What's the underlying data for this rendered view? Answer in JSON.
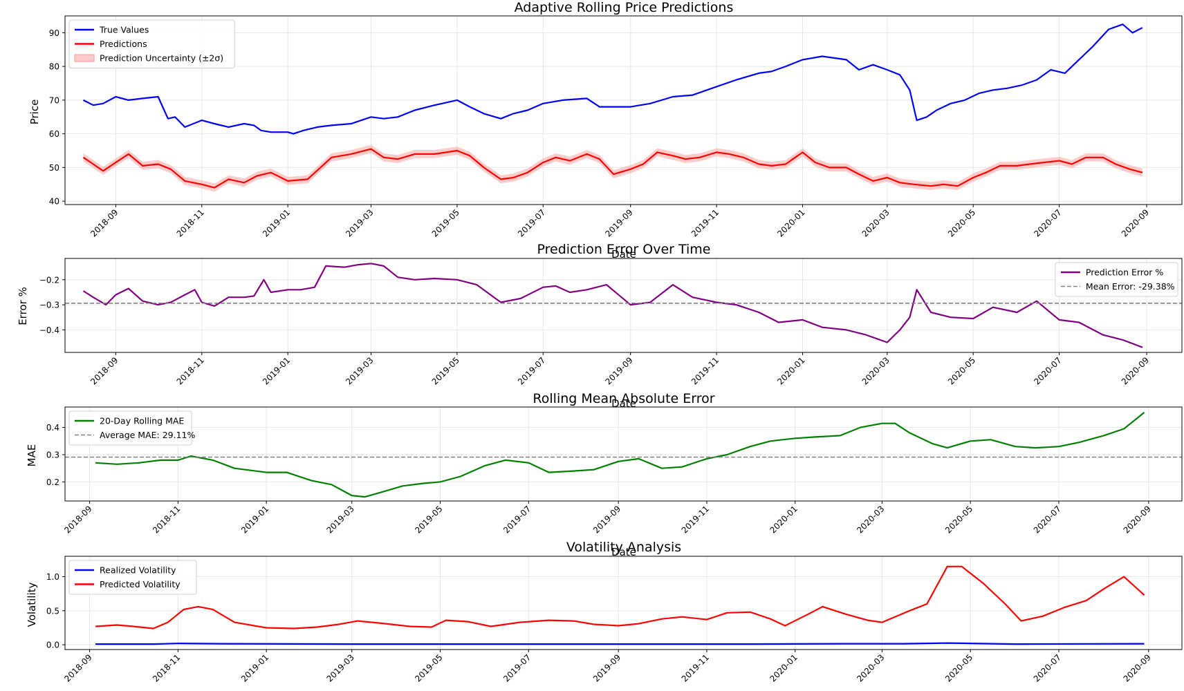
{
  "chart_data": [
    {
      "type": "line",
      "title": "Adaptive Rolling Price Predictions",
      "xlabel": "Date",
      "ylabel": "Price",
      "xlim": [
        "2018-07-27",
        "2020-09-26"
      ],
      "ylim": [
        39,
        95
      ],
      "yticks": [
        40,
        50,
        60,
        70,
        80,
        90
      ],
      "xticks": [
        "2018-09",
        "2018-11",
        "2019-01",
        "2019-03",
        "2019-05",
        "2019-07",
        "2019-09",
        "2019-11",
        "2020-01",
        "2020-03",
        "2020-05",
        "2020-07",
        "2020-09"
      ],
      "grid": true,
      "legend_position": "upper-left",
      "series": [
        {
          "name": "True Values",
          "color": "#0000ff",
          "x": [
            "2018-08-09",
            "2018-08-16",
            "2018-08-23",
            "2018-09-01",
            "2018-09-10",
            "2018-09-20",
            "2018-10-01",
            "2018-10-08",
            "2018-10-13",
            "2018-10-20",
            "2018-11-01",
            "2018-11-10",
            "2018-11-20",
            "2018-12-01",
            "2018-12-08",
            "2018-12-13",
            "2018-12-20",
            "2019-01-01",
            "2019-01-05",
            "2019-01-12",
            "2019-01-22",
            "2019-02-01",
            "2019-02-15",
            "2019-03-01",
            "2019-03-10",
            "2019-03-20",
            "2019-04-01",
            "2019-04-15",
            "2019-05-01",
            "2019-05-10",
            "2019-05-20",
            "2019-06-01",
            "2019-06-10",
            "2019-06-20",
            "2019-07-01",
            "2019-07-15",
            "2019-08-01",
            "2019-08-10",
            "2019-08-20",
            "2019-09-01",
            "2019-09-15",
            "2019-10-01",
            "2019-10-15",
            "2019-11-01",
            "2019-11-08",
            "2019-11-15",
            "2019-12-01",
            "2019-12-10",
            "2019-12-20",
            "2020-01-01",
            "2020-01-15",
            "2020-02-01",
            "2020-02-10",
            "2020-02-20",
            "2020-03-01",
            "2020-03-10",
            "2020-03-17",
            "2020-03-22",
            "2020-03-29",
            "2020-04-05",
            "2020-04-15",
            "2020-04-25",
            "2020-05-05",
            "2020-05-15",
            "2020-05-25",
            "2020-06-05",
            "2020-06-15",
            "2020-06-25",
            "2020-07-05",
            "2020-07-15",
            "2020-07-25",
            "2020-08-05",
            "2020-08-15",
            "2020-08-22",
            "2020-08-29"
          ],
          "y": [
            70,
            68.5,
            69,
            71,
            70,
            70.5,
            71,
            64.5,
            65,
            62,
            64,
            63,
            62,
            63,
            62.5,
            61,
            60.5,
            60.5,
            60,
            61,
            62,
            62.5,
            63,
            65,
            64.5,
            65,
            67,
            68.5,
            70,
            68,
            66,
            64.5,
            66,
            67,
            69,
            70,
            70.5,
            68,
            68,
            68,
            69,
            71,
            71.5,
            74,
            75,
            76,
            78,
            78.5,
            80,
            82,
            83,
            82,
            79,
            80.5,
            79,
            77.5,
            73,
            64,
            65,
            67,
            69,
            70,
            72,
            73,
            73.5,
            74.5,
            76,
            79,
            78,
            82,
            86,
            91,
            92.5,
            90,
            91.5
          ]
        },
        {
          "name": "Predictions",
          "color": "#ff0000",
          "x": [
            "2018-08-09",
            "2018-08-16",
            "2018-08-23",
            "2018-09-01",
            "2018-09-10",
            "2018-09-20",
            "2018-10-01",
            "2018-10-10",
            "2018-10-20",
            "2018-11-01",
            "2018-11-10",
            "2018-11-20",
            "2018-12-01",
            "2018-12-10",
            "2018-12-20",
            "2019-01-01",
            "2019-01-15",
            "2019-02-01",
            "2019-02-15",
            "2019-03-01",
            "2019-03-10",
            "2019-03-20",
            "2019-04-01",
            "2019-04-15",
            "2019-05-01",
            "2019-05-10",
            "2019-05-20",
            "2019-06-01",
            "2019-06-10",
            "2019-06-20",
            "2019-07-01",
            "2019-07-10",
            "2019-07-20",
            "2019-08-01",
            "2019-08-10",
            "2019-08-20",
            "2019-09-01",
            "2019-09-10",
            "2019-09-20",
            "2019-10-01",
            "2019-10-10",
            "2019-10-20",
            "2019-11-01",
            "2019-11-10",
            "2019-11-20",
            "2019-12-01",
            "2019-12-10",
            "2019-12-20",
            "2020-01-01",
            "2020-01-10",
            "2020-01-20",
            "2020-02-01",
            "2020-02-10",
            "2020-02-20",
            "2020-03-01",
            "2020-03-10",
            "2020-03-20",
            "2020-04-01",
            "2020-04-10",
            "2020-04-20",
            "2020-05-01",
            "2020-05-10",
            "2020-05-20",
            "2020-06-01",
            "2020-06-10",
            "2020-06-20",
            "2020-07-01",
            "2020-07-10",
            "2020-07-20",
            "2020-08-01",
            "2020-08-10",
            "2020-08-20",
            "2020-08-29"
          ],
          "y": [
            53,
            51,
            49,
            51.5,
            54,
            50.5,
            51,
            49.5,
            46,
            45,
            44,
            46.5,
            45.5,
            47.5,
            48.5,
            46,
            46.5,
            53,
            54,
            55.5,
            53,
            52.5,
            54,
            54,
            55,
            53.5,
            50,
            46.5,
            47,
            48.5,
            51.5,
            53,
            52,
            54,
            52.5,
            48,
            49.5,
            51,
            54.5,
            53.5,
            52.5,
            53,
            54.5,
            54,
            53,
            51,
            50.5,
            51,
            54.5,
            51.5,
            50,
            50,
            48,
            46,
            47,
            45.5,
            45,
            44.5,
            45,
            44.5,
            47,
            48.5,
            50.5,
            50.5,
            51,
            51.5,
            52,
            51,
            53,
            53,
            51,
            49.5,
            48.5
          ]
        },
        {
          "name": "Prediction Uncertainty (±2σ)",
          "color": "#ff9999",
          "band": "±2σ around Predictions"
        }
      ]
    },
    {
      "type": "line",
      "title": "Prediction Error Over Time",
      "xlabel": "Date",
      "ylabel": "Error %",
      "xlim": [
        "2018-07-27",
        "2020-09-26"
      ],
      "ylim": [
        -0.49,
        -0.115
      ],
      "yticks": [
        -0.4,
        -0.3,
        -0.2
      ],
      "yticklabels": [
        "−0.4",
        "−0.3",
        "−0.2"
      ],
      "xticks": [
        "2018-09",
        "2018-11",
        "2019-01",
        "2019-03",
        "2019-05",
        "2019-07",
        "2019-09",
        "2019-11",
        "2020-01",
        "2020-03",
        "2020-05",
        "2020-07",
        "2020-09"
      ],
      "grid": true,
      "legend_position": "upper-right",
      "series": [
        {
          "name": "Prediction Error %",
          "color": "#800080",
          "x": [
            "2018-08-09",
            "2018-08-16",
            "2018-08-25",
            "2018-09-01",
            "2018-09-10",
            "2018-09-20",
            "2018-10-01",
            "2018-10-10",
            "2018-10-20",
            "2018-10-27",
            "2018-11-01",
            "2018-11-10",
            "2018-11-20",
            "2018-12-01",
            "2018-12-08",
            "2018-12-15",
            "2018-12-20",
            "2019-01-01",
            "2019-01-10",
            "2019-01-20",
            "2019-01-28",
            "2019-02-10",
            "2019-02-20",
            "2019-03-01",
            "2019-03-10",
            "2019-03-20",
            "2019-04-01",
            "2019-04-15",
            "2019-05-01",
            "2019-05-15",
            "2019-06-01",
            "2019-06-15",
            "2019-07-01",
            "2019-07-10",
            "2019-07-20",
            "2019-08-01",
            "2019-08-15",
            "2019-09-01",
            "2019-09-15",
            "2019-10-01",
            "2019-10-15",
            "2019-11-01",
            "2019-11-15",
            "2019-12-01",
            "2019-12-15",
            "2020-01-01",
            "2020-01-15",
            "2020-02-01",
            "2020-02-15",
            "2020-03-01",
            "2020-03-10",
            "2020-03-17",
            "2020-03-22",
            "2020-04-01",
            "2020-04-15",
            "2020-05-01",
            "2020-05-15",
            "2020-06-01",
            "2020-06-15",
            "2020-07-01",
            "2020-07-15",
            "2020-08-01",
            "2020-08-15",
            "2020-08-29"
          ],
          "y": [
            -0.245,
            -0.27,
            -0.3,
            -0.26,
            -0.235,
            -0.285,
            -0.3,
            -0.29,
            -0.26,
            -0.24,
            -0.29,
            -0.305,
            -0.27,
            -0.27,
            -0.265,
            -0.2,
            -0.25,
            -0.24,
            -0.24,
            -0.23,
            -0.145,
            -0.15,
            -0.14,
            -0.135,
            -0.145,
            -0.19,
            -0.2,
            -0.195,
            -0.2,
            -0.22,
            -0.29,
            -0.275,
            -0.23,
            -0.225,
            -0.25,
            -0.24,
            -0.22,
            -0.3,
            -0.29,
            -0.22,
            -0.27,
            -0.29,
            -0.3,
            -0.33,
            -0.37,
            -0.36,
            -0.39,
            -0.4,
            -0.42,
            -0.45,
            -0.4,
            -0.35,
            -0.24,
            -0.33,
            -0.35,
            -0.355,
            -0.31,
            -0.33,
            -0.285,
            -0.36,
            -0.37,
            -0.42,
            -0.44,
            -0.47
          ]
        },
        {
          "name": "Mean Error: -29.38%",
          "color": "#808080",
          "dashed": true,
          "y": -0.2938
        }
      ]
    },
    {
      "type": "line",
      "title": "Rolling Mean Absolute Error",
      "xlabel": "Date",
      "ylabel": "MAE",
      "xlim": [
        "2018-08-15",
        "2020-09-24"
      ],
      "ylim": [
        0.13,
        0.475
      ],
      "yticks": [
        0.2,
        0.3,
        0.4
      ],
      "xticks": [
        "2018-09",
        "2018-11",
        "2019-01",
        "2019-03",
        "2019-05",
        "2019-07",
        "2019-09",
        "2019-11",
        "2020-01",
        "2020-03",
        "2020-05",
        "2020-07",
        "2020-09"
      ],
      "grid": true,
      "legend_position": "upper-left",
      "series": [
        {
          "name": "20-Day Rolling MAE",
          "color": "#008000",
          "x": [
            "2018-09-05",
            "2018-09-20",
            "2018-10-05",
            "2018-10-20",
            "2018-11-01",
            "2018-11-10",
            "2018-11-25",
            "2018-12-10",
            "2019-01-01",
            "2019-01-15",
            "2019-02-01",
            "2019-02-15",
            "2019-03-01",
            "2019-03-10",
            "2019-03-20",
            "2019-04-05",
            "2019-04-20",
            "2019-05-01",
            "2019-05-15",
            "2019-06-01",
            "2019-06-15",
            "2019-07-01",
            "2019-07-15",
            "2019-08-01",
            "2019-08-15",
            "2019-09-01",
            "2019-09-15",
            "2019-10-01",
            "2019-10-15",
            "2019-11-01",
            "2019-11-15",
            "2019-12-01",
            "2019-12-15",
            "2020-01-01",
            "2020-01-15",
            "2020-02-01",
            "2020-02-15",
            "2020-03-01",
            "2020-03-10",
            "2020-03-20",
            "2020-04-05",
            "2020-04-15",
            "2020-05-01",
            "2020-05-15",
            "2020-06-01",
            "2020-06-15",
            "2020-07-01",
            "2020-07-15",
            "2020-08-01",
            "2020-08-15",
            "2020-08-29"
          ],
          "y": [
            0.27,
            0.265,
            0.27,
            0.28,
            0.28,
            0.295,
            0.28,
            0.25,
            0.235,
            0.235,
            0.205,
            0.19,
            0.15,
            0.145,
            0.16,
            0.185,
            0.195,
            0.2,
            0.22,
            0.26,
            0.28,
            0.27,
            0.235,
            0.24,
            0.245,
            0.275,
            0.285,
            0.25,
            0.255,
            0.285,
            0.3,
            0.33,
            0.35,
            0.36,
            0.365,
            0.37,
            0.4,
            0.415,
            0.415,
            0.38,
            0.34,
            0.325,
            0.35,
            0.355,
            0.33,
            0.325,
            0.33,
            0.345,
            0.37,
            0.395,
            0.455
          ]
        },
        {
          "name": "Average MAE: 29.11%",
          "color": "#808080",
          "dashed": true,
          "y": 0.2911
        }
      ]
    },
    {
      "type": "line",
      "title": "Volatility Analysis",
      "xlabel": "",
      "ylabel": "Volatility",
      "xlim": [
        "2018-08-15",
        "2020-09-24"
      ],
      "ylim": [
        -0.07,
        1.3
      ],
      "yticks": [
        0.0,
        0.5,
        1.0
      ],
      "yticklabels": [
        "0.0",
        "0.5",
        "1.0"
      ],
      "xticks": [
        "2018-09",
        "2018-11",
        "2019-01",
        "2019-03",
        "2019-05",
        "2019-07",
        "2019-09",
        "2019-11",
        "2020-01",
        "2020-03",
        "2020-05",
        "2020-07",
        "2020-09"
      ],
      "grid": true,
      "legend_position": "upper-left",
      "series": [
        {
          "name": "Realized Volatility",
          "color": "#0000ff",
          "x": [
            "2018-09-05",
            "2018-10-15",
            "2018-11-01",
            "2018-12-01",
            "2019-03-01",
            "2019-06-01",
            "2019-09-01",
            "2019-12-01",
            "2020-02-01",
            "2020-03-15",
            "2020-04-15",
            "2020-05-01",
            "2020-06-01",
            "2020-08-29"
          ],
          "y": [
            0.01,
            0.01,
            0.02,
            0.015,
            0.01,
            0.01,
            0.01,
            0.01,
            0.015,
            0.015,
            0.025,
            0.02,
            0.01,
            0.015
          ]
        },
        {
          "name": "Predicted Volatility",
          "color": "#ff0000",
          "x": [
            "2018-09-05",
            "2018-09-20",
            "2018-10-01",
            "2018-10-15",
            "2018-10-25",
            "2018-11-05",
            "2018-11-15",
            "2018-11-25",
            "2018-12-10",
            "2019-01-01",
            "2019-01-20",
            "2019-02-05",
            "2019-02-20",
            "2019-03-05",
            "2019-03-20",
            "2019-04-10",
            "2019-04-25",
            "2019-05-05",
            "2019-05-20",
            "2019-06-05",
            "2019-06-25",
            "2019-07-15",
            "2019-08-01",
            "2019-08-15",
            "2019-09-01",
            "2019-09-15",
            "2019-10-01",
            "2019-10-15",
            "2019-11-01",
            "2019-11-15",
            "2019-12-01",
            "2019-12-15",
            "2019-12-25",
            "2020-01-10",
            "2020-01-20",
            "2020-02-05",
            "2020-02-20",
            "2020-03-01",
            "2020-03-20",
            "2020-04-01",
            "2020-04-15",
            "2020-04-25",
            "2020-05-10",
            "2020-05-25",
            "2020-06-05",
            "2020-06-20",
            "2020-07-05",
            "2020-07-20",
            "2020-08-01",
            "2020-08-15",
            "2020-08-29"
          ],
          "y": [
            0.27,
            0.29,
            0.27,
            0.24,
            0.33,
            0.52,
            0.56,
            0.52,
            0.33,
            0.25,
            0.24,
            0.26,
            0.3,
            0.35,
            0.32,
            0.27,
            0.26,
            0.36,
            0.34,
            0.27,
            0.33,
            0.36,
            0.35,
            0.3,
            0.28,
            0.31,
            0.38,
            0.41,
            0.37,
            0.47,
            0.48,
            0.38,
            0.28,
            0.45,
            0.56,
            0.45,
            0.36,
            0.33,
            0.5,
            0.6,
            1.15,
            1.15,
            0.9,
            0.6,
            0.35,
            0.42,
            0.55,
            0.65,
            0.82,
            1.0,
            0.73
          ]
        }
      ]
    }
  ]
}
